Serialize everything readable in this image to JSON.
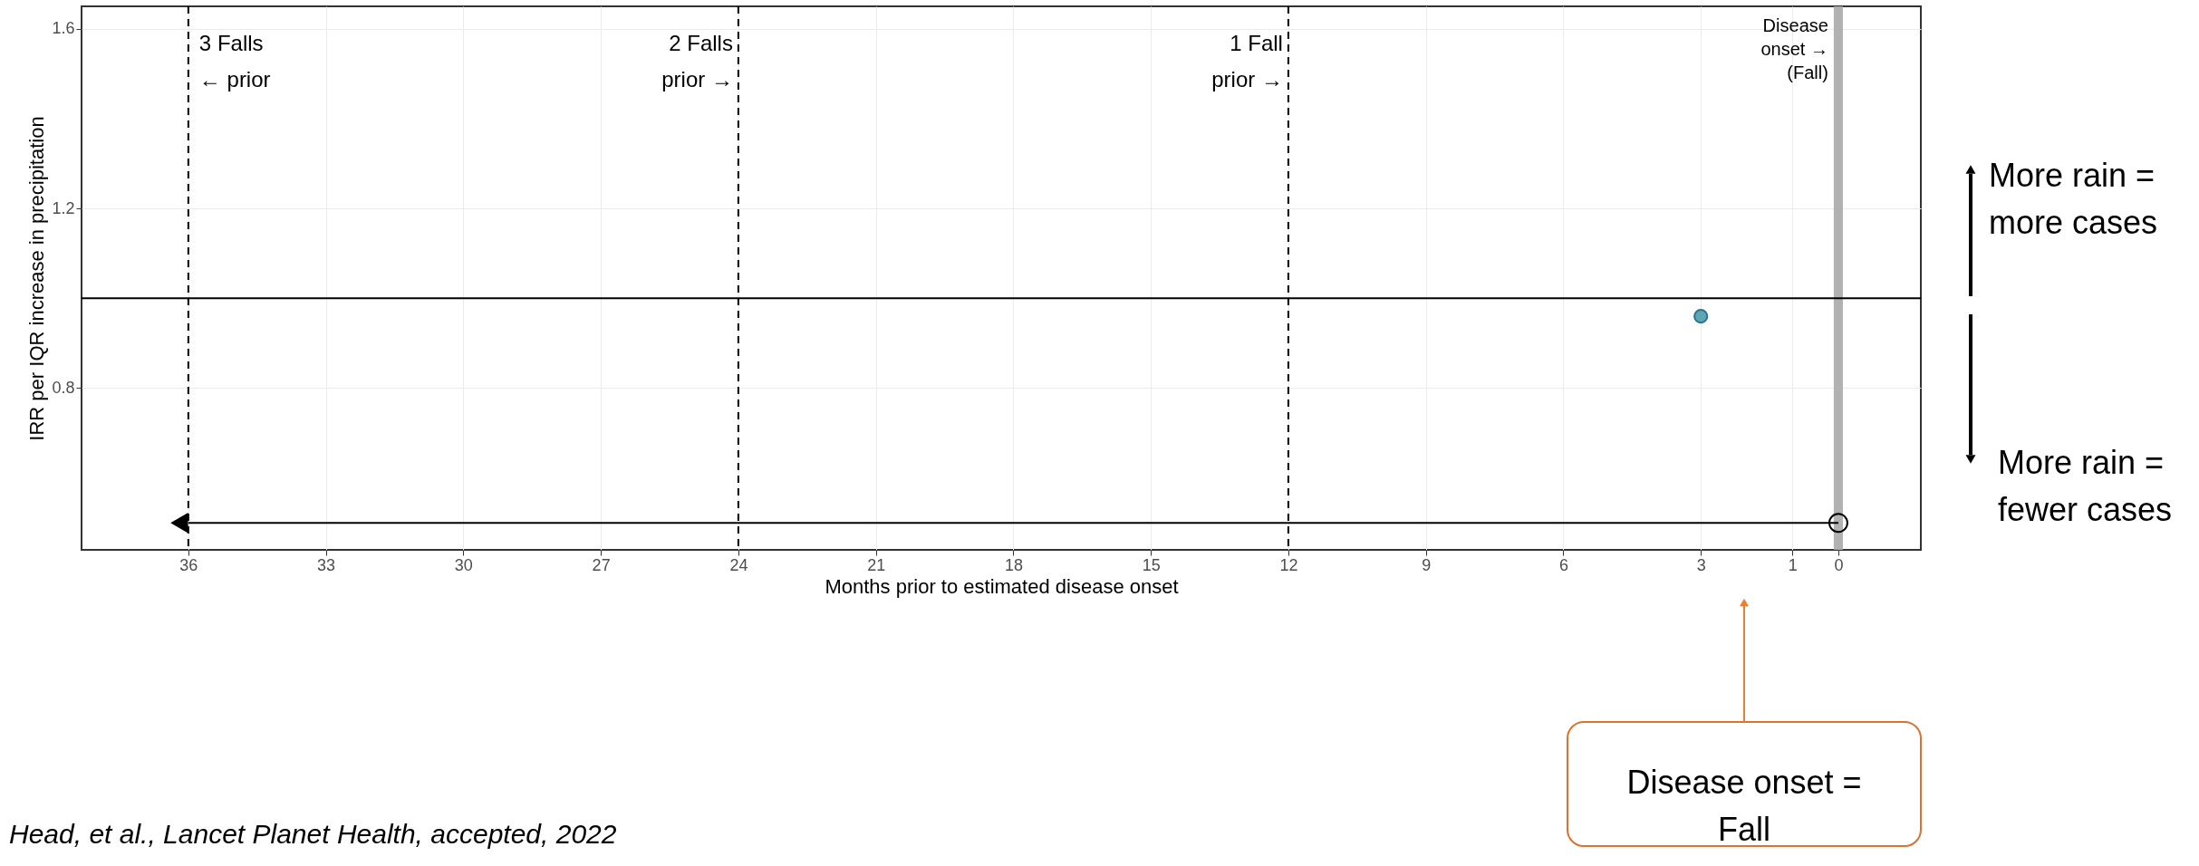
{
  "chart_data": {
    "type": "scatter",
    "xlabel": "Months prior to estimated disease onset",
    "ylabel": "IRR per IQR increase in precipitation",
    "xlim": [
      38.33,
      -1.8
    ],
    "xticks": [
      36,
      33,
      30,
      27,
      24,
      21,
      18,
      15,
      12,
      9,
      6,
      3,
      1,
      0
    ],
    "ylim": [
      0.44,
      1.65
    ],
    "yticks": [
      0.8,
      1.2,
      1.6
    ],
    "grid": true,
    "marker": "circle",
    "series": [
      {
        "x": [
          3
        ],
        "values": [
          0.96
        ],
        "color": "#5ba8b3"
      },
      {
        "type": "line",
        "x": [
          0,
          36
        ],
        "values": [
          0.5,
          0.5
        ],
        "color": "#000000",
        "marker": "circle"
      }
    ],
    "ref_lines": [
      {
        "axis": "x",
        "value": 36,
        "label": "3 Falls\n← prior",
        "line_style": "dashed",
        "color": "#000000"
      },
      {
        "axis": "x",
        "value": 24,
        "label": "2 Falls\nprior →",
        "line_style": "dashed",
        "color": "#000000"
      },
      {
        "axis": "x",
        "value": 12,
        "label": "1 Fall\nprior →",
        "line_style": "dashed",
        "color": "#000000"
      },
      {
        "axis": "y",
        "value": 1,
        "line_style": "solid",
        "color": "#000000"
      }
    ],
    "bands": [
      {
        "axis": "x",
        "from": -0.1,
        "to": 0.1,
        "label": "Disease\nonset →\n(Fall)",
        "color": "#aaaaaa"
      }
    ],
    "annotations": [
      "More rain =\nmore cases",
      "More rain =\nfewer cases",
      "Disease onset =\nFall",
      "Head, et al., Lancet Planet Health, accepted, 2022"
    ]
  }
}
